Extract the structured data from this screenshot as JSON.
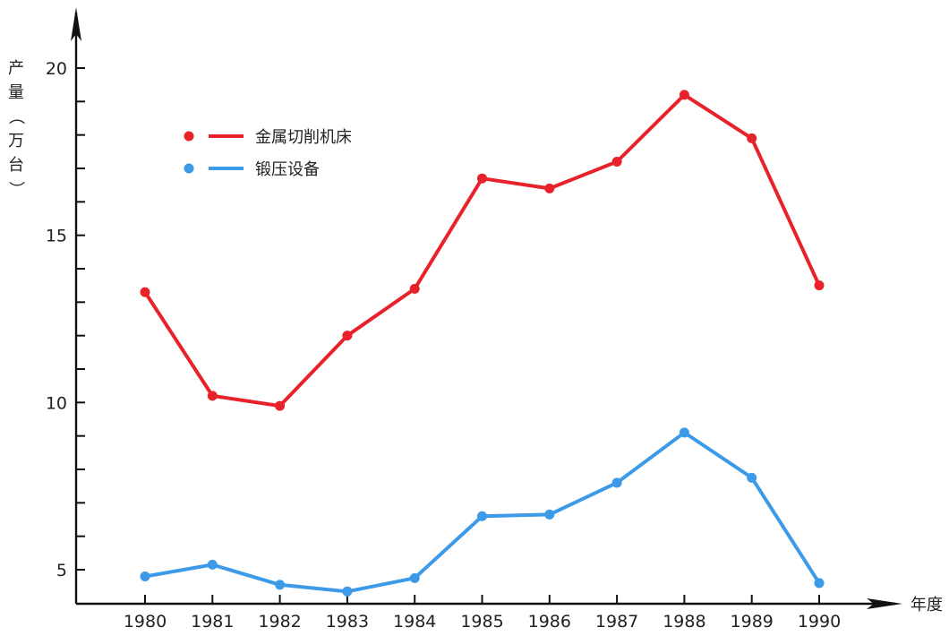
{
  "chart_data": {
    "type": "line",
    "title": "",
    "xlabel": "年度",
    "ylabel": "产量（万台）",
    "ylim": [
      4,
      21.5
    ],
    "yticks_labeled": [
      5,
      10,
      15,
      20
    ],
    "yticks_minor": [
      6,
      7,
      8,
      9,
      11,
      12,
      13,
      14,
      16,
      17,
      18,
      19
    ],
    "categories": [
      "1980",
      "1981",
      "1982",
      "1983",
      "1984",
      "1985",
      "1986",
      "1987",
      "1988",
      "1989",
      "1990"
    ],
    "grid": false,
    "legend_position": "top-left",
    "series": [
      {
        "name": "金属切削机床",
        "color": "#e8222a",
        "values": [
          13.3,
          10.2,
          9.9,
          12.0,
          13.4,
          16.7,
          16.4,
          17.2,
          19.2,
          17.9,
          13.5
        ]
      },
      {
        "name": "锻压设备",
        "color": "#3d9ae8",
        "values": [
          4.8,
          5.15,
          4.55,
          4.35,
          4.75,
          6.6,
          6.65,
          7.6,
          9.1,
          7.75,
          4.6
        ]
      }
    ]
  }
}
